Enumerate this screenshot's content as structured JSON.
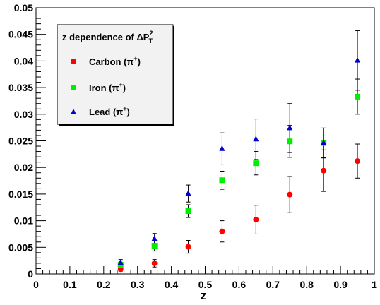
{
  "chart_data": {
    "type": "scatter",
    "xlabel": "z",
    "ylabel": "",
    "xlim": [
      0,
      1
    ],
    "ylim": [
      0,
      0.05
    ],
    "x_ticks": [
      "0",
      "0.1",
      "0.2",
      "0.3",
      "0.4",
      "0.5",
      "0.6",
      "0.7",
      "0.8",
      "0.9",
      "1"
    ],
    "y_ticks": [
      "0",
      "0.005",
      "0.01",
      "0.015",
      "0.02",
      "0.025",
      "0.03",
      "0.035",
      "0.04",
      "0.045",
      "0.05"
    ],
    "grid": false,
    "legend": {
      "title": "z dependence of ΔP",
      "title_sup": "2",
      "title_sub": "T",
      "placement": "top-left"
    },
    "series": [
      {
        "name": "Carbon (π",
        "name_sup": "+",
        "name_close": ")",
        "marker": "circle",
        "color": "#ff0000",
        "points": [
          {
            "x": 0.25,
            "y": 0.0009,
            "err": 0.0004
          },
          {
            "x": 0.35,
            "y": 0.002,
            "err": 0.0007
          },
          {
            "x": 0.45,
            "y": 0.0051,
            "err": 0.0012
          },
          {
            "x": 0.55,
            "y": 0.008,
            "err": 0.002
          },
          {
            "x": 0.65,
            "y": 0.0102,
            "err": 0.0027
          },
          {
            "x": 0.75,
            "y": 0.0149,
            "err": 0.0034
          },
          {
            "x": 0.85,
            "y": 0.0194,
            "err": 0.0039
          },
          {
            "x": 0.95,
            "y": 0.0212,
            "err": 0.0032
          }
        ]
      },
      {
        "name": "Iron (π",
        "name_sup": "+",
        "name_close": ")",
        "marker": "square",
        "color": "#00ee00",
        "points": [
          {
            "x": 0.25,
            "y": 0.0017,
            "err": 0.0005
          },
          {
            "x": 0.35,
            "y": 0.0053,
            "err": 0.001
          },
          {
            "x": 0.45,
            "y": 0.0118,
            "err": 0.0012
          },
          {
            "x": 0.55,
            "y": 0.0176,
            "err": 0.0017
          },
          {
            "x": 0.65,
            "y": 0.0208,
            "err": 0.0022
          },
          {
            "x": 0.75,
            "y": 0.0249,
            "err": 0.003
          },
          {
            "x": 0.85,
            "y": 0.0246,
            "err": 0.0028
          },
          {
            "x": 0.95,
            "y": 0.0333,
            "err": 0.0033
          }
        ]
      },
      {
        "name": "Lead (π",
        "name_sup": "+",
        "name_close": ")",
        "marker": "triangle",
        "color": "#0000cc",
        "points": [
          {
            "x": 0.25,
            "y": 0.0021,
            "err": 0.0006
          },
          {
            "x": 0.35,
            "y": 0.0066,
            "err": 0.001
          },
          {
            "x": 0.45,
            "y": 0.0151,
            "err": 0.0016
          },
          {
            "x": 0.55,
            "y": 0.0235,
            "err": 0.003
          },
          {
            "x": 0.65,
            "y": 0.0253,
            "err": 0.0038
          },
          {
            "x": 0.75,
            "y": 0.0274,
            "err": 0.0046
          },
          {
            "x": 0.85,
            "y": 0.0246,
            "err": 0.0028
          },
          {
            "x": 0.95,
            "y": 0.0401,
            "err": 0.0056
          }
        ]
      }
    ]
  }
}
